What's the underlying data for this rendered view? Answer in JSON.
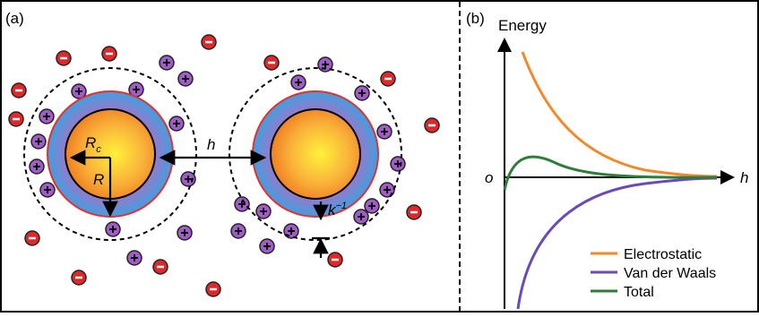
{
  "panel_a": {
    "label": "(a)",
    "core_radius": {
      "main": "R",
      "sub": "c"
    },
    "radius": "R",
    "separation": "h",
    "debye_length": {
      "main": "k",
      "sup": "−1"
    }
  },
  "panel_b": {
    "label": "(b)",
    "y_axis": "Energy",
    "origin": "o",
    "x_axis": "h",
    "legend": [
      "Electrostatic",
      "Van der Waals",
      "Total"
    ]
  }
}
